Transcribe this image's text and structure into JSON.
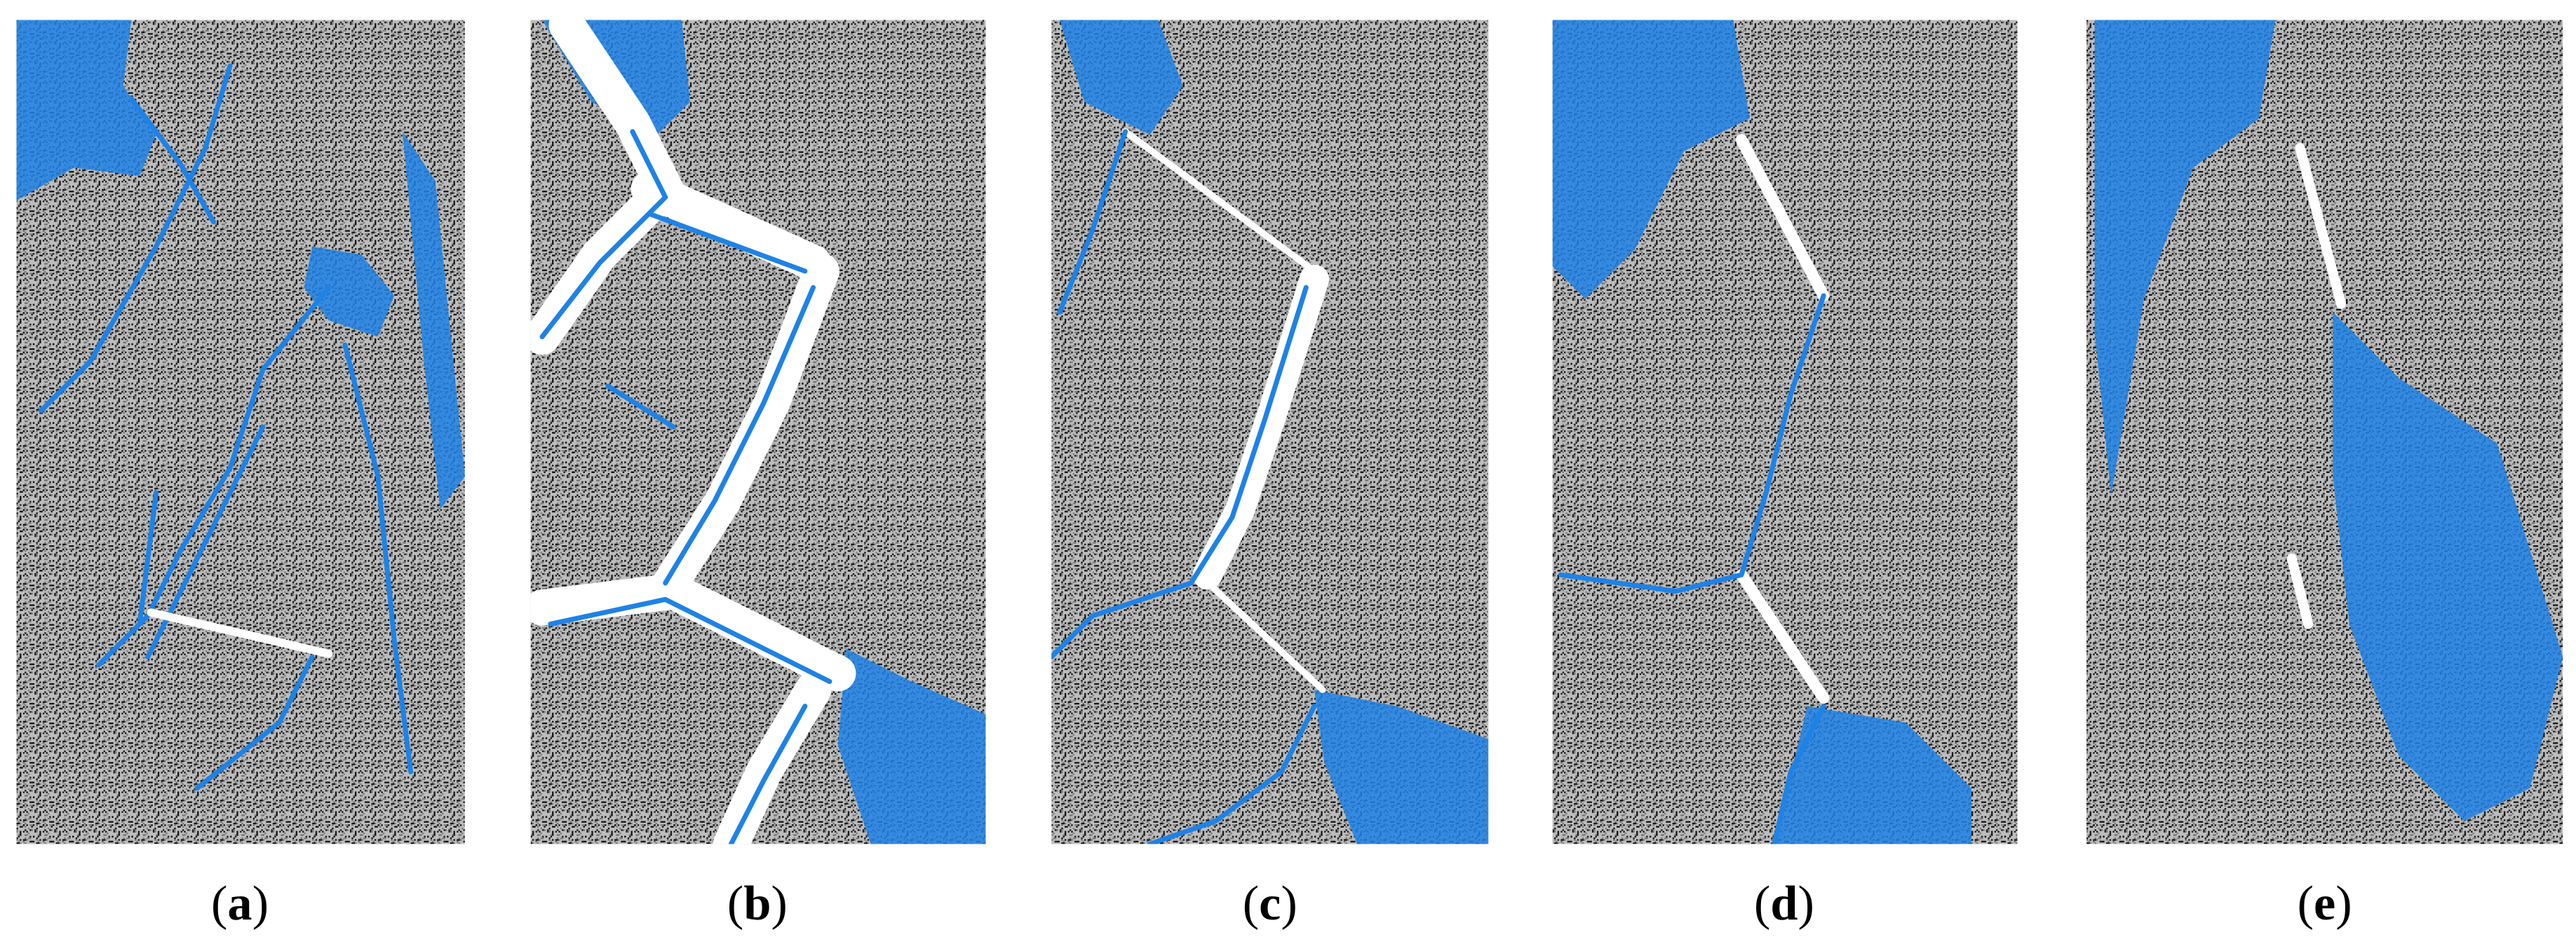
{
  "figure": {
    "panels": [
      {
        "label": [
          "(",
          "a",
          ")"
        ]
      },
      {
        "label": [
          "(",
          "b",
          ")"
        ]
      },
      {
        "label": [
          "(",
          "c",
          ")"
        ]
      },
      {
        "label": [
          "(",
          "d",
          ")"
        ]
      },
      {
        "label": [
          "(",
          "e",
          ")"
        ]
      }
    ]
  }
}
